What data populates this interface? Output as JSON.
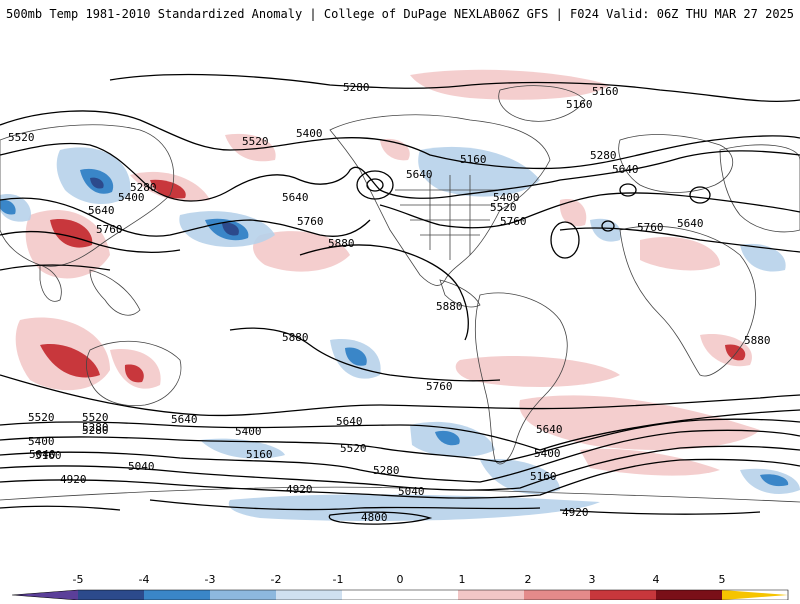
{
  "header": {
    "left_title": "500mb Temp 1981-2010 Standardized Anomaly | College of DuPage NEXLAB",
    "right_title": "06Z GFS | F024 Valid: 06Z THU MAR 27 2025"
  },
  "contour_labels": [
    "5280",
    "5160",
    "5160",
    "5520",
    "5520",
    "5400",
    "5280",
    "5400",
    "5640",
    "5640",
    "5760",
    "5760",
    "5880",
    "5880",
    "5880",
    "5640",
    "5160",
    "5280",
    "5400",
    "5520",
    "5760",
    "5640",
    "5640",
    "5640",
    "5880",
    "5760",
    "5760",
    "5640",
    "5520",
    "5280",
    "5400",
    "5160",
    "5040",
    "5400",
    "5160",
    "5520",
    "5280",
    "4920",
    "5040",
    "4920",
    "4800",
    "4920",
    "5520",
    "5280",
    "5040",
    "5640",
    "5400",
    "5160"
  ],
  "colorbar": {
    "tick_labels": [
      "-5",
      "-4",
      "-3",
      "-2",
      "-1",
      "0",
      "1",
      "2",
      "3",
      "4",
      "5"
    ],
    "colors": [
      "#5b3f99",
      "#2c4a8c",
      "#3a86c8",
      "#8db8de",
      "#cfe0f0",
      "#ffffff",
      "#ffffff",
      "#f2c6c6",
      "#e48a8a",
      "#c8373c",
      "#7a0f18",
      "#f6c400"
    ]
  },
  "colors": {
    "contour": "#000000",
    "border": "#444444",
    "cold": "#8db8de",
    "cold_strong": "#3a86c8",
    "warm": "#f2c6c6",
    "warm_strong": "#c8373c"
  }
}
